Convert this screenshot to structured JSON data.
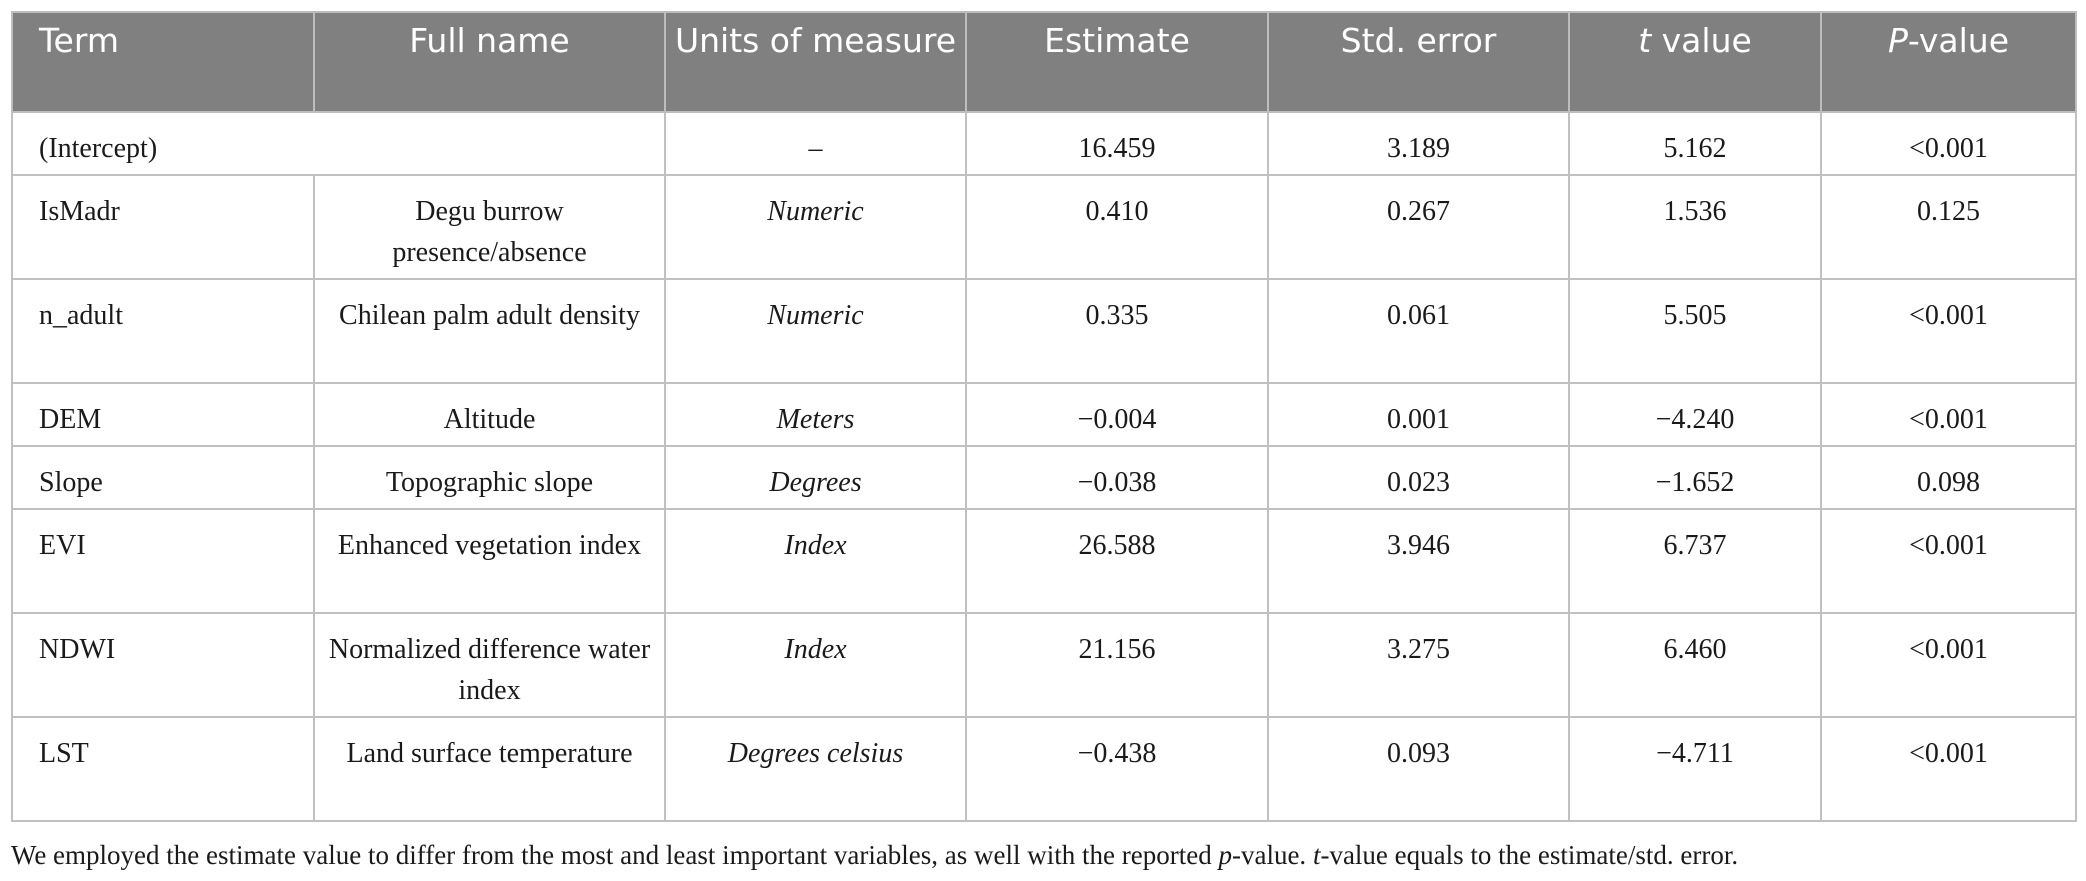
{
  "headers": {
    "term": "Term",
    "full_name": "Full name",
    "units": "Units of measure",
    "estimate": "Estimate",
    "std_error": "Std. error",
    "t_italic": "t",
    "t_rest": " value",
    "p_italic": "P",
    "p_rest": "-value"
  },
  "rows": [
    {
      "term": "(Intercept)",
      "full_name": "",
      "units": "–",
      "estimate": "16.459",
      "std_error": "3.189",
      "t_value": "5.162",
      "p_value": "<0.001"
    },
    {
      "term": "IsMadr",
      "full_name": "Degu burrow presence/absence",
      "units": "Numeric",
      "estimate": "0.410",
      "std_error": "0.267",
      "t_value": "1.536",
      "p_value": "0.125"
    },
    {
      "term": "n_adult",
      "full_name": "Chilean palm adult density",
      "units": "Numeric",
      "estimate": "0.335",
      "std_error": "0.061",
      "t_value": "5.505",
      "p_value": "<0.001"
    },
    {
      "term": "DEM",
      "full_name": "Altitude",
      "units": "Meters",
      "estimate": "−0.004",
      "std_error": "0.001",
      "t_value": "−4.240",
      "p_value": "<0.001"
    },
    {
      "term": "Slope",
      "full_name": "Topographic slope",
      "units": "Degrees",
      "estimate": "−0.038",
      "std_error": "0.023",
      "t_value": "−1.652",
      "p_value": "0.098"
    },
    {
      "term": "EVI",
      "full_name": "Enhanced vegetation index",
      "units": "Index",
      "estimate": "26.588",
      "std_error": "3.946",
      "t_value": "6.737",
      "p_value": "<0.001"
    },
    {
      "term": "NDWI",
      "full_name": "Normalized difference water index",
      "units": "Index",
      "estimate": "21.156",
      "std_error": "3.275",
      "t_value": "6.460",
      "p_value": "<0.001"
    },
    {
      "term": "LST",
      "full_name": "Land surface temperature",
      "units": "Degrees celsius",
      "estimate": "−0.438",
      "std_error": "0.093",
      "t_value": "−4.711",
      "p_value": "<0.001"
    }
  ],
  "footnote": {
    "part1": "We employed the estimate value to differ from the most and least important variables, as well with the reported ",
    "p_italic": "p",
    "part2": "-value. ",
    "t_italic": "t",
    "part3": "-value equals to the estimate/std. error."
  }
}
